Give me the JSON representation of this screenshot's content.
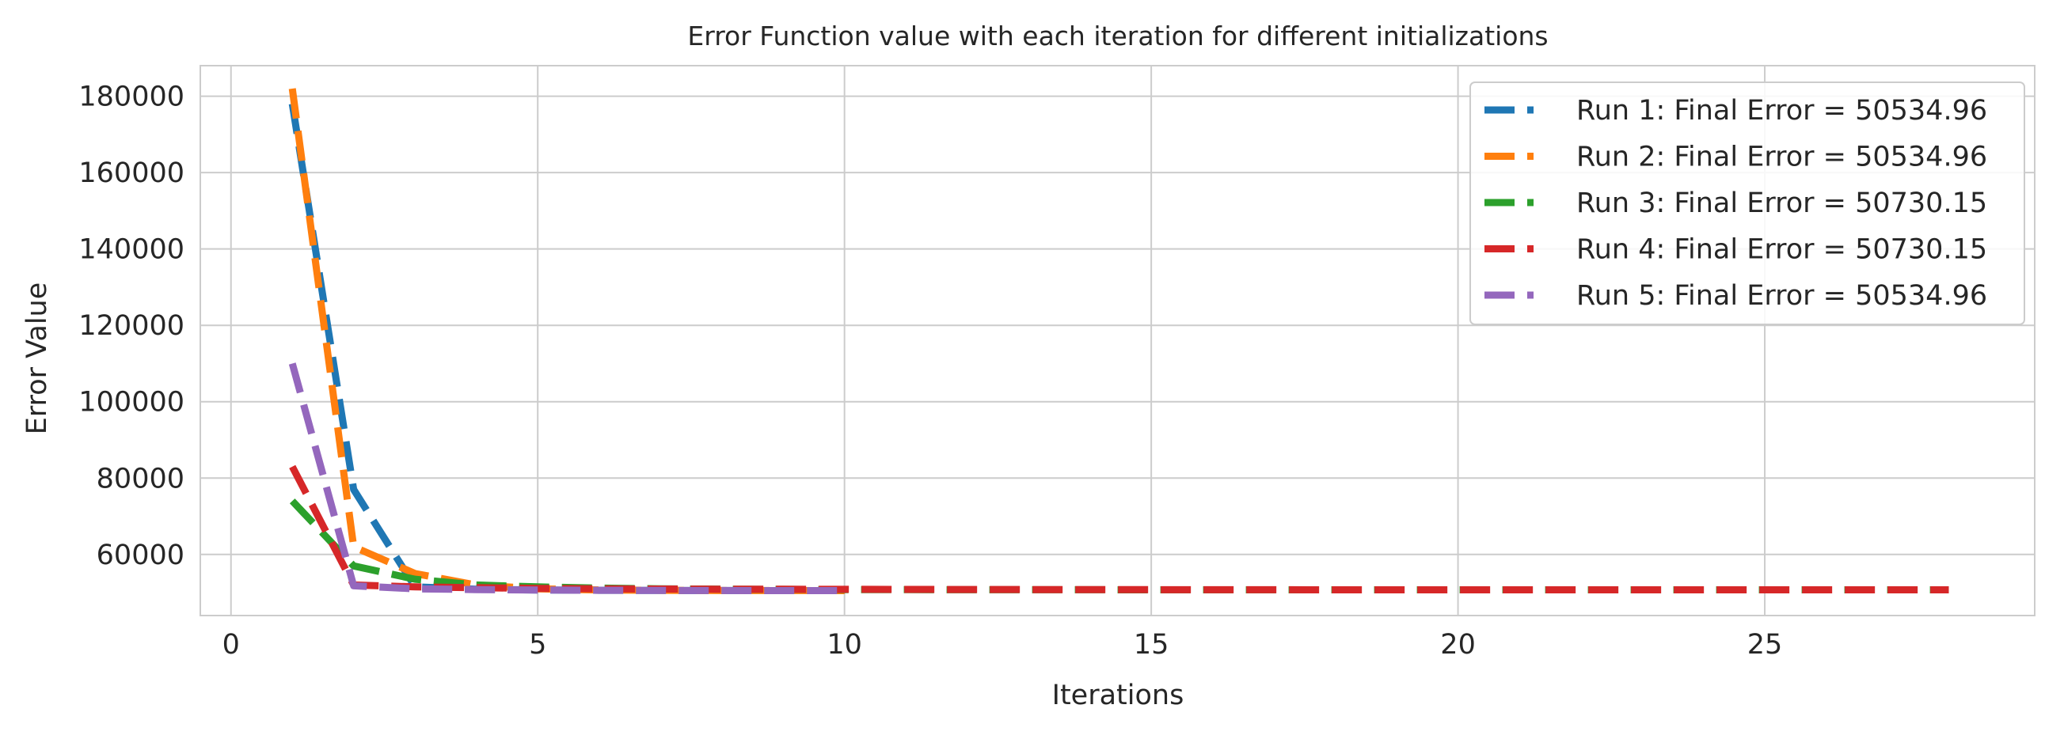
{
  "chart_data": {
    "type": "line",
    "title": "Error Function value with each iteration for different initializations",
    "xlabel": "Iterations",
    "ylabel": "Error Value",
    "xlim": [
      -0.5,
      29.4
    ],
    "ylim": [
      44000,
      188000
    ],
    "x_ticks": [
      0,
      5,
      10,
      15,
      20,
      25
    ],
    "y_ticks": [
      60000,
      80000,
      100000,
      120000,
      140000,
      160000,
      180000
    ],
    "grid": true,
    "legend_position": "top-right",
    "series": [
      {
        "name": "Run 1: Final Error = 50534.96",
        "color": "#1f77b4",
        "x": [
          1,
          2,
          3,
          4,
          5,
          6,
          7,
          8,
          9,
          10
        ],
        "values": [
          178000,
          77000,
          51500,
          50900,
          50700,
          50600,
          50560,
          50540,
          50535,
          50534.96
        ]
      },
      {
        "name": "Run 2: Final Error = 50534.96",
        "color": "#ff7f0e",
        "x": [
          1,
          2,
          3,
          4,
          5,
          6,
          7,
          8,
          9,
          10
        ],
        "values": [
          182000,
          62000,
          55000,
          52000,
          51000,
          50700,
          50600,
          50550,
          50540,
          50534.96
        ]
      },
      {
        "name": "Run 3: Final Error = 50730.15",
        "color": "#2ca02c",
        "x": [
          1,
          2,
          3,
          4,
          5,
          6,
          7,
          8,
          9,
          10,
          11,
          12,
          13,
          14,
          15,
          16,
          17,
          18,
          19,
          20,
          21,
          22,
          23,
          24,
          25,
          26,
          27,
          28
        ],
        "values": [
          74000,
          57000,
          53500,
          52000,
          51500,
          51200,
          51000,
          50900,
          50850,
          50800,
          50780,
          50760,
          50750,
          50745,
          50740,
          50738,
          50736,
          50734,
          50733,
          50732,
          50731,
          50731,
          50730.5,
          50730.3,
          50730.2,
          50730.15,
          50730.15,
          50730.15
        ]
      },
      {
        "name": "Run 4: Final Error = 50730.15",
        "color": "#d62728",
        "x": [
          1,
          2,
          3,
          4,
          5,
          6,
          7,
          8,
          9,
          10,
          11,
          12,
          13,
          14,
          15,
          16,
          17,
          18,
          19,
          20,
          21,
          22,
          23,
          24,
          25,
          26,
          27,
          28
        ],
        "values": [
          83000,
          52000,
          51500,
          51300,
          51100,
          51000,
          50950,
          50900,
          50870,
          50850,
          50830,
          50810,
          50790,
          50775,
          50765,
          50755,
          50748,
          50742,
          50738,
          50735,
          50733,
          50732,
          50731,
          50730.5,
          50730.3,
          50730.2,
          50730.15,
          50730.15
        ]
      },
      {
        "name": "Run 5: Final Error = 50534.96",
        "color": "#9467bd",
        "x": [
          1,
          2,
          3,
          4,
          5,
          6,
          7,
          8,
          9,
          10
        ],
        "values": [
          110000,
          51800,
          51000,
          50800,
          50700,
          50600,
          50560,
          50540,
          50536,
          50534.96
        ]
      }
    ]
  }
}
